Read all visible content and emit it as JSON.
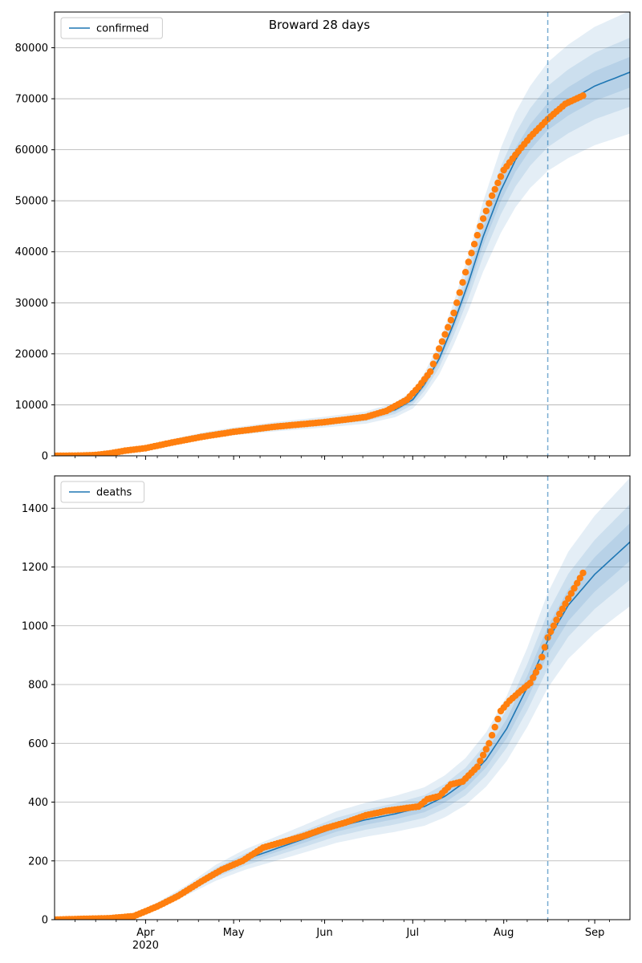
{
  "title": "Broward 28 days",
  "colors": {
    "model": "#1f77b4",
    "observed": "#ff7f0e",
    "band": "#1f77b4",
    "grid": "#b0b0b0",
    "forecast_line": "#1f77b4"
  },
  "x_axis": {
    "start": "2020-03-01",
    "end": "2020-09-13",
    "month_ticks": [
      {
        "date": "2020-04-01",
        "label": "Apr"
      },
      {
        "date": "2020-05-01",
        "label": "May"
      },
      {
        "date": "2020-06-01",
        "label": "Jun"
      },
      {
        "date": "2020-07-01",
        "label": "Jul"
      },
      {
        "date": "2020-08-01",
        "label": "Aug"
      },
      {
        "date": "2020-09-01",
        "label": "Sep"
      }
    ],
    "year_label": "2020",
    "forecast_date": "2020-08-16"
  },
  "chart_data": [
    {
      "type": "line",
      "legend": "confirmed",
      "legend_position": "top-left",
      "grid": "horizontal",
      "ylim": [
        0,
        87000
      ],
      "yticks": [
        0,
        10000,
        20000,
        30000,
        40000,
        50000,
        60000,
        70000,
        80000
      ],
      "model_curve": [
        [
          "2020-03-01",
          0
        ],
        [
          "2020-03-15",
          200
        ],
        [
          "2020-03-25",
          800
        ],
        [
          "2020-04-01",
          1500
        ],
        [
          "2020-04-10",
          2800
        ],
        [
          "2020-04-20",
          3900
        ],
        [
          "2020-05-01",
          4800
        ],
        [
          "2020-05-15",
          5700
        ],
        [
          "2020-06-01",
          6600
        ],
        [
          "2020-06-15",
          7500
        ],
        [
          "2020-06-25",
          9000
        ],
        [
          "2020-07-01",
          11000
        ],
        [
          "2020-07-05",
          14000
        ],
        [
          "2020-07-10",
          19000
        ],
        [
          "2020-07-15",
          26000
        ],
        [
          "2020-07-20",
          34000
        ],
        [
          "2020-07-25",
          43000
        ],
        [
          "2020-07-31",
          52000
        ],
        [
          "2020-08-05",
          58000
        ],
        [
          "2020-08-10",
          62500
        ],
        [
          "2020-08-16",
          66500
        ],
        [
          "2020-08-23",
          69500
        ],
        [
          "2020-09-01",
          72500
        ],
        [
          "2020-09-13",
          75200
        ]
      ],
      "band_spreads": [
        0.16,
        0.09,
        0.04
      ],
      "observed": [
        [
          "2020-03-01",
          0
        ],
        [
          "2020-03-10",
          50
        ],
        [
          "2020-03-15",
          150
        ],
        [
          "2020-03-20",
          500
        ],
        [
          "2020-03-25",
          1000
        ],
        [
          "2020-04-01",
          1500
        ],
        [
          "2020-04-10",
          2600
        ],
        [
          "2020-04-20",
          3700
        ],
        [
          "2020-05-01",
          4700
        ],
        [
          "2020-05-15",
          5700
        ],
        [
          "2020-06-01",
          6600
        ],
        [
          "2020-06-15",
          7600
        ],
        [
          "2020-06-22",
          8800
        ],
        [
          "2020-06-29",
          11000
        ],
        [
          "2020-07-03",
          13500
        ],
        [
          "2020-07-07",
          16500
        ],
        [
          "2020-07-10",
          21000
        ],
        [
          "2020-07-15",
          28000
        ],
        [
          "2020-07-20",
          38000
        ],
        [
          "2020-07-24",
          45000
        ],
        [
          "2020-07-28",
          51000
        ],
        [
          "2020-08-01",
          56000
        ],
        [
          "2020-08-05",
          59000
        ],
        [
          "2020-08-10",
          62500
        ],
        [
          "2020-08-16",
          66000
        ],
        [
          "2020-08-22",
          69000
        ],
        [
          "2020-08-28",
          70600
        ]
      ]
    },
    {
      "type": "line",
      "legend": "deaths",
      "legend_position": "top-left",
      "grid": "horizontal",
      "ylim": [
        0,
        1510
      ],
      "yticks": [
        0,
        200,
        400,
        600,
        800,
        1000,
        1200,
        1400
      ],
      "model_curve": [
        [
          "2020-03-01",
          0
        ],
        [
          "2020-03-20",
          5
        ],
        [
          "2020-03-28",
          15
        ],
        [
          "2020-04-05",
          50
        ],
        [
          "2020-04-15",
          100
        ],
        [
          "2020-04-25",
          160
        ],
        [
          "2020-05-05",
          205
        ],
        [
          "2020-05-15",
          240
        ],
        [
          "2020-05-25",
          275
        ],
        [
          "2020-06-05",
          315
        ],
        [
          "2020-06-15",
          340
        ],
        [
          "2020-06-25",
          360
        ],
        [
          "2020-07-05",
          385
        ],
        [
          "2020-07-12",
          420
        ],
        [
          "2020-07-19",
          470
        ],
        [
          "2020-07-26",
          545
        ],
        [
          "2020-08-02",
          650
        ],
        [
          "2020-08-09",
          790
        ],
        [
          "2020-08-16",
          950
        ],
        [
          "2020-08-23",
          1070
        ],
        [
          "2020-09-01",
          1175
        ],
        [
          "2020-09-13",
          1285
        ]
      ],
      "band_spreads": [
        0.17,
        0.1,
        0.05
      ],
      "observed": [
        [
          "2020-03-01",
          0
        ],
        [
          "2020-03-20",
          5
        ],
        [
          "2020-03-28",
          12
        ],
        [
          "2020-04-05",
          45
        ],
        [
          "2020-04-12",
          80
        ],
        [
          "2020-04-20",
          130
        ],
        [
          "2020-04-27",
          170
        ],
        [
          "2020-05-04",
          200
        ],
        [
          "2020-05-11",
          245
        ],
        [
          "2020-05-18",
          265
        ],
        [
          "2020-05-25",
          285
        ],
        [
          "2020-06-01",
          310
        ],
        [
          "2020-06-08",
          330
        ],
        [
          "2020-06-15",
          355
        ],
        [
          "2020-06-22",
          370
        ],
        [
          "2020-06-29",
          380
        ],
        [
          "2020-07-03",
          385
        ],
        [
          "2020-07-06",
          410
        ],
        [
          "2020-07-10",
          420
        ],
        [
          "2020-07-14",
          460
        ],
        [
          "2020-07-18",
          470
        ],
        [
          "2020-07-23",
          520
        ],
        [
          "2020-07-27",
          600
        ],
        [
          "2020-07-31",
          710
        ],
        [
          "2020-08-03",
          745
        ],
        [
          "2020-08-07",
          780
        ],
        [
          "2020-08-10",
          805
        ],
        [
          "2020-08-13",
          860
        ],
        [
          "2020-08-16",
          960
        ],
        [
          "2020-08-20",
          1040
        ],
        [
          "2020-08-24",
          1110
        ],
        [
          "2020-08-28",
          1180
        ]
      ]
    }
  ]
}
